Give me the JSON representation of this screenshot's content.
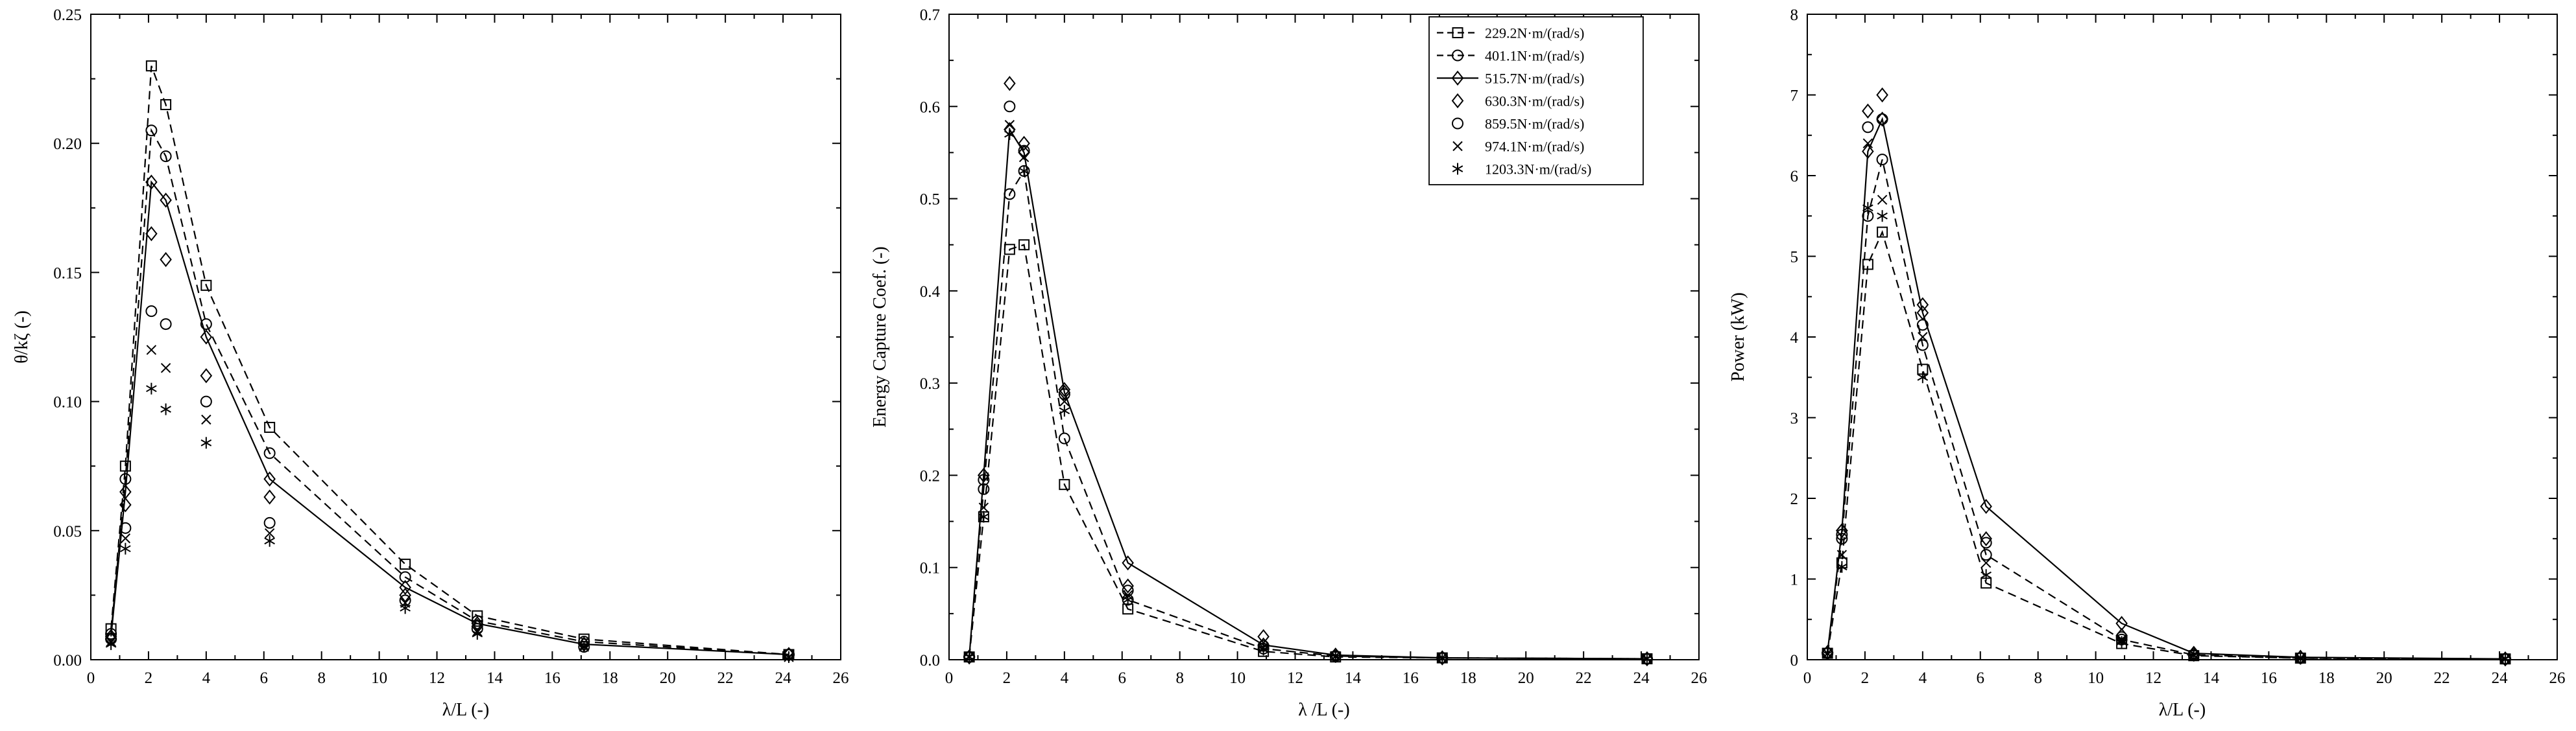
{
  "colors": {
    "foreground": "#000000",
    "background": "#ffffff"
  },
  "chart_data": [
    {
      "type": "line",
      "title": "",
      "xlabel": "λ/L (-)",
      "ylabel": "θ/kζ (-)",
      "xlim": [
        0,
        26
      ],
      "ylim": [
        0,
        0.25
      ],
      "xtick_step": 2,
      "xminor_step": 1,
      "ytick_step": 0.05,
      "yminor_step": 0.025,
      "ytick_decimals": 2,
      "grid": false,
      "legend": false,
      "x": [
        0.7,
        1.2,
        2.1,
        2.6,
        4.0,
        6.2,
        10.9,
        13.4,
        17.1,
        24.2
      ],
      "series": [
        {
          "name": "229.2N·m/(rad/s)",
          "marker": "square",
          "line": "dash",
          "values": [
            0.012,
            0.075,
            0.23,
            0.215,
            0.145,
            0.09,
            0.037,
            0.017,
            0.008,
            0.002
          ]
        },
        {
          "name": "401.1N·m/(rad/s)",
          "marker": "circle",
          "line": "dash",
          "values": [
            0.01,
            0.07,
            0.205,
            0.195,
            0.13,
            0.08,
            0.032,
            0.015,
            0.007,
            0.002
          ]
        },
        {
          "name": "515.7N·m/(rad/s)",
          "marker": "diamond",
          "line": "solid",
          "values": [
            0.009,
            0.065,
            0.185,
            0.178,
            0.125,
            0.07,
            0.028,
            0.014,
            0.006,
            0.002
          ]
        },
        {
          "name": "630.3N·m/(rad/s)",
          "marker": "diamond",
          "line": "none",
          "values": [
            0.008,
            0.06,
            0.165,
            0.155,
            0.11,
            0.063,
            0.025,
            0.013,
            0.006,
            0.002
          ]
        },
        {
          "name": "859.5N·m/(rad/s)",
          "marker": "circle",
          "line": "none",
          "values": [
            0.008,
            0.051,
            0.135,
            0.13,
            0.1,
            0.053,
            0.023,
            0.012,
            0.005,
            0.002
          ]
        },
        {
          "name": "974.1N·m/(rad/s)",
          "marker": "x",
          "line": "none",
          "values": [
            0.007,
            0.047,
            0.12,
            0.113,
            0.093,
            0.049,
            0.022,
            0.011,
            0.005,
            0.001
          ]
        },
        {
          "name": "1203.3N·m/(rad/s)",
          "marker": "asterisk",
          "line": "none",
          "values": [
            0.006,
            0.043,
            0.105,
            0.097,
            0.084,
            0.046,
            0.02,
            0.01,
            0.005,
            0.001
          ]
        }
      ]
    },
    {
      "type": "line",
      "title": "",
      "xlabel": "λ /L  (-)",
      "ylabel": "Energy Capture Coef. (-)",
      "xlim": [
        0,
        26
      ],
      "ylim": [
        0,
        0.7
      ],
      "xtick_step": 2,
      "xminor_step": 1,
      "ytick_step": 0.1,
      "yminor_step": 0.05,
      "ytick_decimals": 1,
      "grid": false,
      "legend": true,
      "legend_position": "top-right",
      "x": [
        0.7,
        1.2,
        2.1,
        2.6,
        4.0,
        6.2,
        10.9,
        13.4,
        17.1,
        24.2
      ],
      "series": [
        {
          "name": "229.2N·m/(rad/s)",
          "marker": "square",
          "line": "dash",
          "values": [
            0.003,
            0.155,
            0.445,
            0.45,
            0.19,
            0.055,
            0.009,
            0.003,
            0.002,
            0.001
          ]
        },
        {
          "name": "401.1N·m/(rad/s)",
          "marker": "circle",
          "line": "dash",
          "values": [
            0.003,
            0.185,
            0.505,
            0.53,
            0.24,
            0.065,
            0.012,
            0.004,
            0.002,
            0.001
          ]
        },
        {
          "name": "515.7N·m/(rad/s)",
          "marker": "diamond",
          "line": "solid",
          "values": [
            0.003,
            0.2,
            0.575,
            0.55,
            0.29,
            0.105,
            0.016,
            0.005,
            0.002,
            0.001
          ]
        },
        {
          "name": "630.3N·m/(rad/s)",
          "marker": "diamond",
          "line": "none",
          "values": [
            0.003,
            0.2,
            0.625,
            0.56,
            0.293,
            0.08,
            0.025,
            0.005,
            0.002,
            0.001
          ]
        },
        {
          "name": "859.5N·m/(rad/s)",
          "marker": "circle",
          "line": "none",
          "values": [
            0.003,
            0.195,
            0.6,
            0.552,
            0.288,
            0.075,
            0.015,
            0.004,
            0.002,
            0.001
          ]
        },
        {
          "name": "974.1N·m/(rad/s)",
          "marker": "x",
          "line": "none",
          "values": [
            0.003,
            0.165,
            0.58,
            0.545,
            0.28,
            0.07,
            0.013,
            0.004,
            0.002,
            0.001
          ]
        },
        {
          "name": "1203.3N·m/(rad/s)",
          "marker": "asterisk",
          "line": "none",
          "values": [
            0.003,
            0.155,
            0.57,
            0.53,
            0.27,
            0.065,
            0.011,
            0.003,
            0.001,
            0.001
          ]
        }
      ]
    },
    {
      "type": "line",
      "title": "",
      "xlabel": "λ/L (-)",
      "ylabel": "Power (kW)",
      "xlim": [
        0,
        26
      ],
      "ylim": [
        0,
        8
      ],
      "xtick_step": 2,
      "xminor_step": 1,
      "ytick_step": 1,
      "yminor_step": 0.5,
      "ytick_decimals": 0,
      "grid": false,
      "legend": false,
      "x": [
        0.7,
        1.2,
        2.1,
        2.6,
        4.0,
        6.2,
        10.9,
        13.4,
        17.1,
        24.2
      ],
      "series": [
        {
          "name": "229.2N·m/(rad/s)",
          "marker": "square",
          "line": "dash",
          "values": [
            0.08,
            1.2,
            4.9,
            5.3,
            3.6,
            0.95,
            0.2,
            0.05,
            0.02,
            0.01
          ]
        },
        {
          "name": "401.1N·m/(rad/s)",
          "marker": "circle",
          "line": "dash",
          "values": [
            0.08,
            1.5,
            5.5,
            6.2,
            3.9,
            1.3,
            0.25,
            0.06,
            0.02,
            0.01
          ]
        },
        {
          "name": "515.7N·m/(rad/s)",
          "marker": "diamond",
          "line": "solid",
          "values": [
            0.09,
            1.6,
            6.3,
            6.7,
            4.3,
            1.9,
            0.45,
            0.08,
            0.03,
            0.01
          ]
        },
        {
          "name": "630.3N·m/(rad/s)",
          "marker": "diamond",
          "line": "none",
          "values": [
            0.09,
            1.6,
            6.8,
            7.0,
            4.4,
            1.5,
            0.3,
            0.07,
            0.03,
            0.01
          ]
        },
        {
          "name": "859.5N·m/(rad/s)",
          "marker": "circle",
          "line": "none",
          "values": [
            0.08,
            1.55,
            6.6,
            6.7,
            4.15,
            1.45,
            0.28,
            0.06,
            0.02,
            0.01
          ]
        },
        {
          "name": "974.1N·m/(rad/s)",
          "marker": "x",
          "line": "none",
          "values": [
            0.08,
            1.3,
            6.4,
            5.7,
            4.0,
            1.2,
            0.25,
            0.06,
            0.02,
            0.01
          ]
        },
        {
          "name": "1203.3N·m/(rad/s)",
          "marker": "asterisk",
          "line": "none",
          "values": [
            0.07,
            1.15,
            5.6,
            5.5,
            3.5,
            1.05,
            0.22,
            0.05,
            0.02,
            0.01
          ]
        }
      ]
    }
  ]
}
